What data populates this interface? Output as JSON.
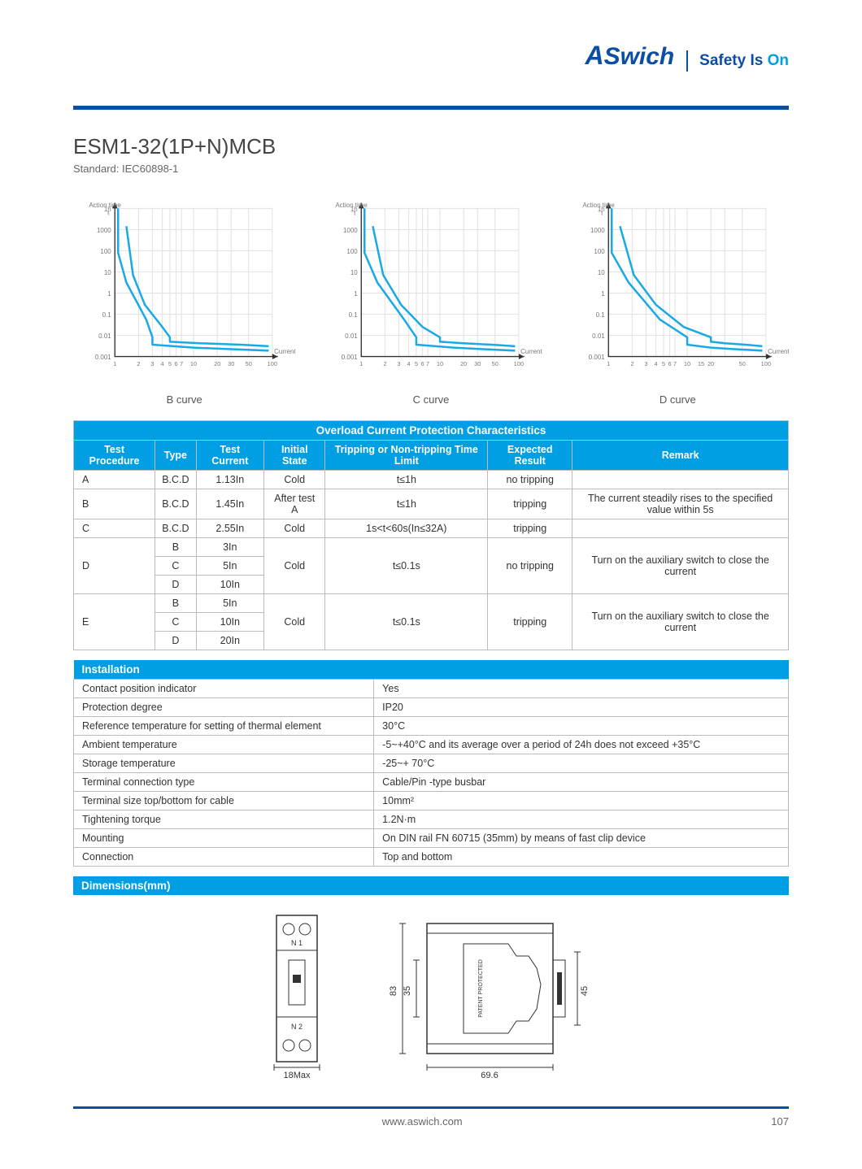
{
  "header": {
    "logo_text": "ASwich",
    "tagline_prefix": "Safety Is ",
    "tagline_accent": "On"
  },
  "title": "ESM1-32(1P+N)MCB",
  "subtitle": "Standard: IEC60898-1",
  "charts": {
    "y_label": "Action time\nt",
    "x_label": "Current",
    "y_ticks": [
      "1h",
      "1000",
      "100",
      "10",
      "1",
      "0.1",
      "0.01",
      "0.001"
    ],
    "x_ticks_bc": [
      "1",
      "2",
      "3",
      "4",
      "5",
      "6",
      "7",
      "10",
      "20",
      "30",
      "50",
      "100"
    ],
    "x_ticks_d": [
      "1",
      "2",
      "3",
      "4",
      "5",
      "6",
      "7",
      "10",
      "15",
      "20",
      "50",
      "100"
    ],
    "line_color": "#19a9e5",
    "grid_color": "#e4e4e4",
    "axis_color": "#333",
    "bg_color": "#ffffff",
    "line_width": 2.2,
    "b_caption": "B curve",
    "c_caption": "C curve",
    "d_caption": "D curve",
    "b_outer": [
      [
        1.1,
        0
      ],
      [
        1.1,
        30
      ],
      [
        1.4,
        50
      ],
      [
        2.5,
        75
      ],
      [
        3.0,
        87
      ],
      [
        3.0,
        92
      ],
      [
        10,
        94
      ],
      [
        30,
        95
      ],
      [
        90,
        96
      ]
    ],
    "b_inner": [
      [
        1.4,
        12
      ],
      [
        1.7,
        45
      ],
      [
        2.4,
        65
      ],
      [
        4.0,
        80
      ],
      [
        5.0,
        87
      ],
      [
        5.0,
        90
      ],
      [
        12,
        91
      ],
      [
        40,
        92
      ],
      [
        90,
        93
      ]
    ],
    "c_outer": [
      [
        1.1,
        0
      ],
      [
        1.1,
        30
      ],
      [
        1.6,
        50
      ],
      [
        3.5,
        75
      ],
      [
        5.0,
        87
      ],
      [
        5.0,
        92
      ],
      [
        15,
        94
      ],
      [
        35,
        95
      ],
      [
        90,
        96
      ]
    ],
    "c_inner": [
      [
        1.4,
        12
      ],
      [
        1.9,
        45
      ],
      [
        3.2,
        65
      ],
      [
        6.0,
        80
      ],
      [
        10,
        87
      ],
      [
        10,
        90
      ],
      [
        20,
        91
      ],
      [
        45,
        92
      ],
      [
        90,
        93
      ]
    ],
    "d_outer": [
      [
        1.1,
        0
      ],
      [
        1.1,
        30
      ],
      [
        1.8,
        50
      ],
      [
        4.5,
        75
      ],
      [
        10,
        87
      ],
      [
        10,
        92
      ],
      [
        20,
        94
      ],
      [
        40,
        95
      ],
      [
        90,
        96
      ]
    ],
    "d_inner": [
      [
        1.4,
        12
      ],
      [
        2.1,
        45
      ],
      [
        4.0,
        65
      ],
      [
        9.0,
        80
      ],
      [
        20,
        87
      ],
      [
        20,
        90
      ],
      [
        30,
        91
      ],
      [
        55,
        92
      ],
      [
        90,
        93
      ]
    ]
  },
  "protection_table": {
    "title": "Overload Current Protection Characteristics",
    "columns": [
      "Test  Procedure",
      "Type",
      "Test Current",
      "Initial State",
      "Tripping or Non-tripping Time Limit",
      "Expected Result",
      "Remark"
    ],
    "rows": [
      {
        "proc": "A",
        "type": "B.C.D",
        "current": "1.13In",
        "state": "Cold",
        "limit": "t≤1h",
        "result": "no tripping",
        "remark": ""
      },
      {
        "proc": "B",
        "type": "B.C.D",
        "current": "1.45In",
        "state": "After test A",
        "limit": "t≤1h",
        "result": "tripping",
        "remark": "The current steadily rises to the specified value within 5s"
      },
      {
        "proc": "C",
        "type": "B.C.D",
        "current": "2.55In",
        "state": "Cold",
        "limit": "1s<t<60s(In≤32A)",
        "result": "tripping",
        "remark": ""
      }
    ],
    "row_d": {
      "proc": "D",
      "sub": [
        {
          "t": "B",
          "c": "3In"
        },
        {
          "t": "C",
          "c": "5In"
        },
        {
          "t": "D",
          "c": "10In"
        }
      ],
      "state": "Cold",
      "limit": "t≤0.1s",
      "result": "no tripping",
      "remark": "Turn on the auxiliary switch to close the current"
    },
    "row_e": {
      "proc": "E",
      "sub": [
        {
          "t": "B",
          "c": "5In"
        },
        {
          "t": "C",
          "c": "10In"
        },
        {
          "t": "D",
          "c": "20In"
        }
      ],
      "state": "Cold",
      "limit": "t≤0.1s",
      "result": "tripping",
      "remark": "Turn on the auxiliary switch to close the current"
    }
  },
  "installation": {
    "title": "Installation",
    "rows": [
      [
        "Contact position indicator",
        "Yes"
      ],
      [
        "Protection degree",
        "IP20"
      ],
      [
        "Reference temperature for setting of thermal element",
        "30°C"
      ],
      [
        "Ambient temperature",
        "-5~+40°C and its average over a period of 24h does not exceed +35°C"
      ],
      [
        "Storage temperature",
        "-25~+ 70°C"
      ],
      [
        "Terminal connection type",
        "Cable/Pin -type busbar"
      ],
      [
        "Terminal size top/bottom for cable",
        "10mm²"
      ],
      [
        "Tightening torque",
        "1.2N·m"
      ],
      [
        "Mounting",
        "On DIN rail FN 60715 (35mm) by means of fast clip device"
      ],
      [
        "Connection",
        "Top and bottom"
      ]
    ]
  },
  "dimensions": {
    "title": "Dimensions(mm)",
    "front_width": "18Max",
    "front_label_top": "N  1",
    "front_label_bot": "N  2",
    "side_height_total": "83",
    "side_height_inner": "35",
    "side_height_clip": "45",
    "side_depth": "69.6",
    "patent_text": "PATENT PROTECTED"
  },
  "footer": {
    "url": "www.aswich.com",
    "page": "107"
  },
  "colors": {
    "brand_blue": "#0c4ea2",
    "sky_blue": "#009fe3",
    "border": "#bbb",
    "text": "#333",
    "text_light": "#666"
  }
}
